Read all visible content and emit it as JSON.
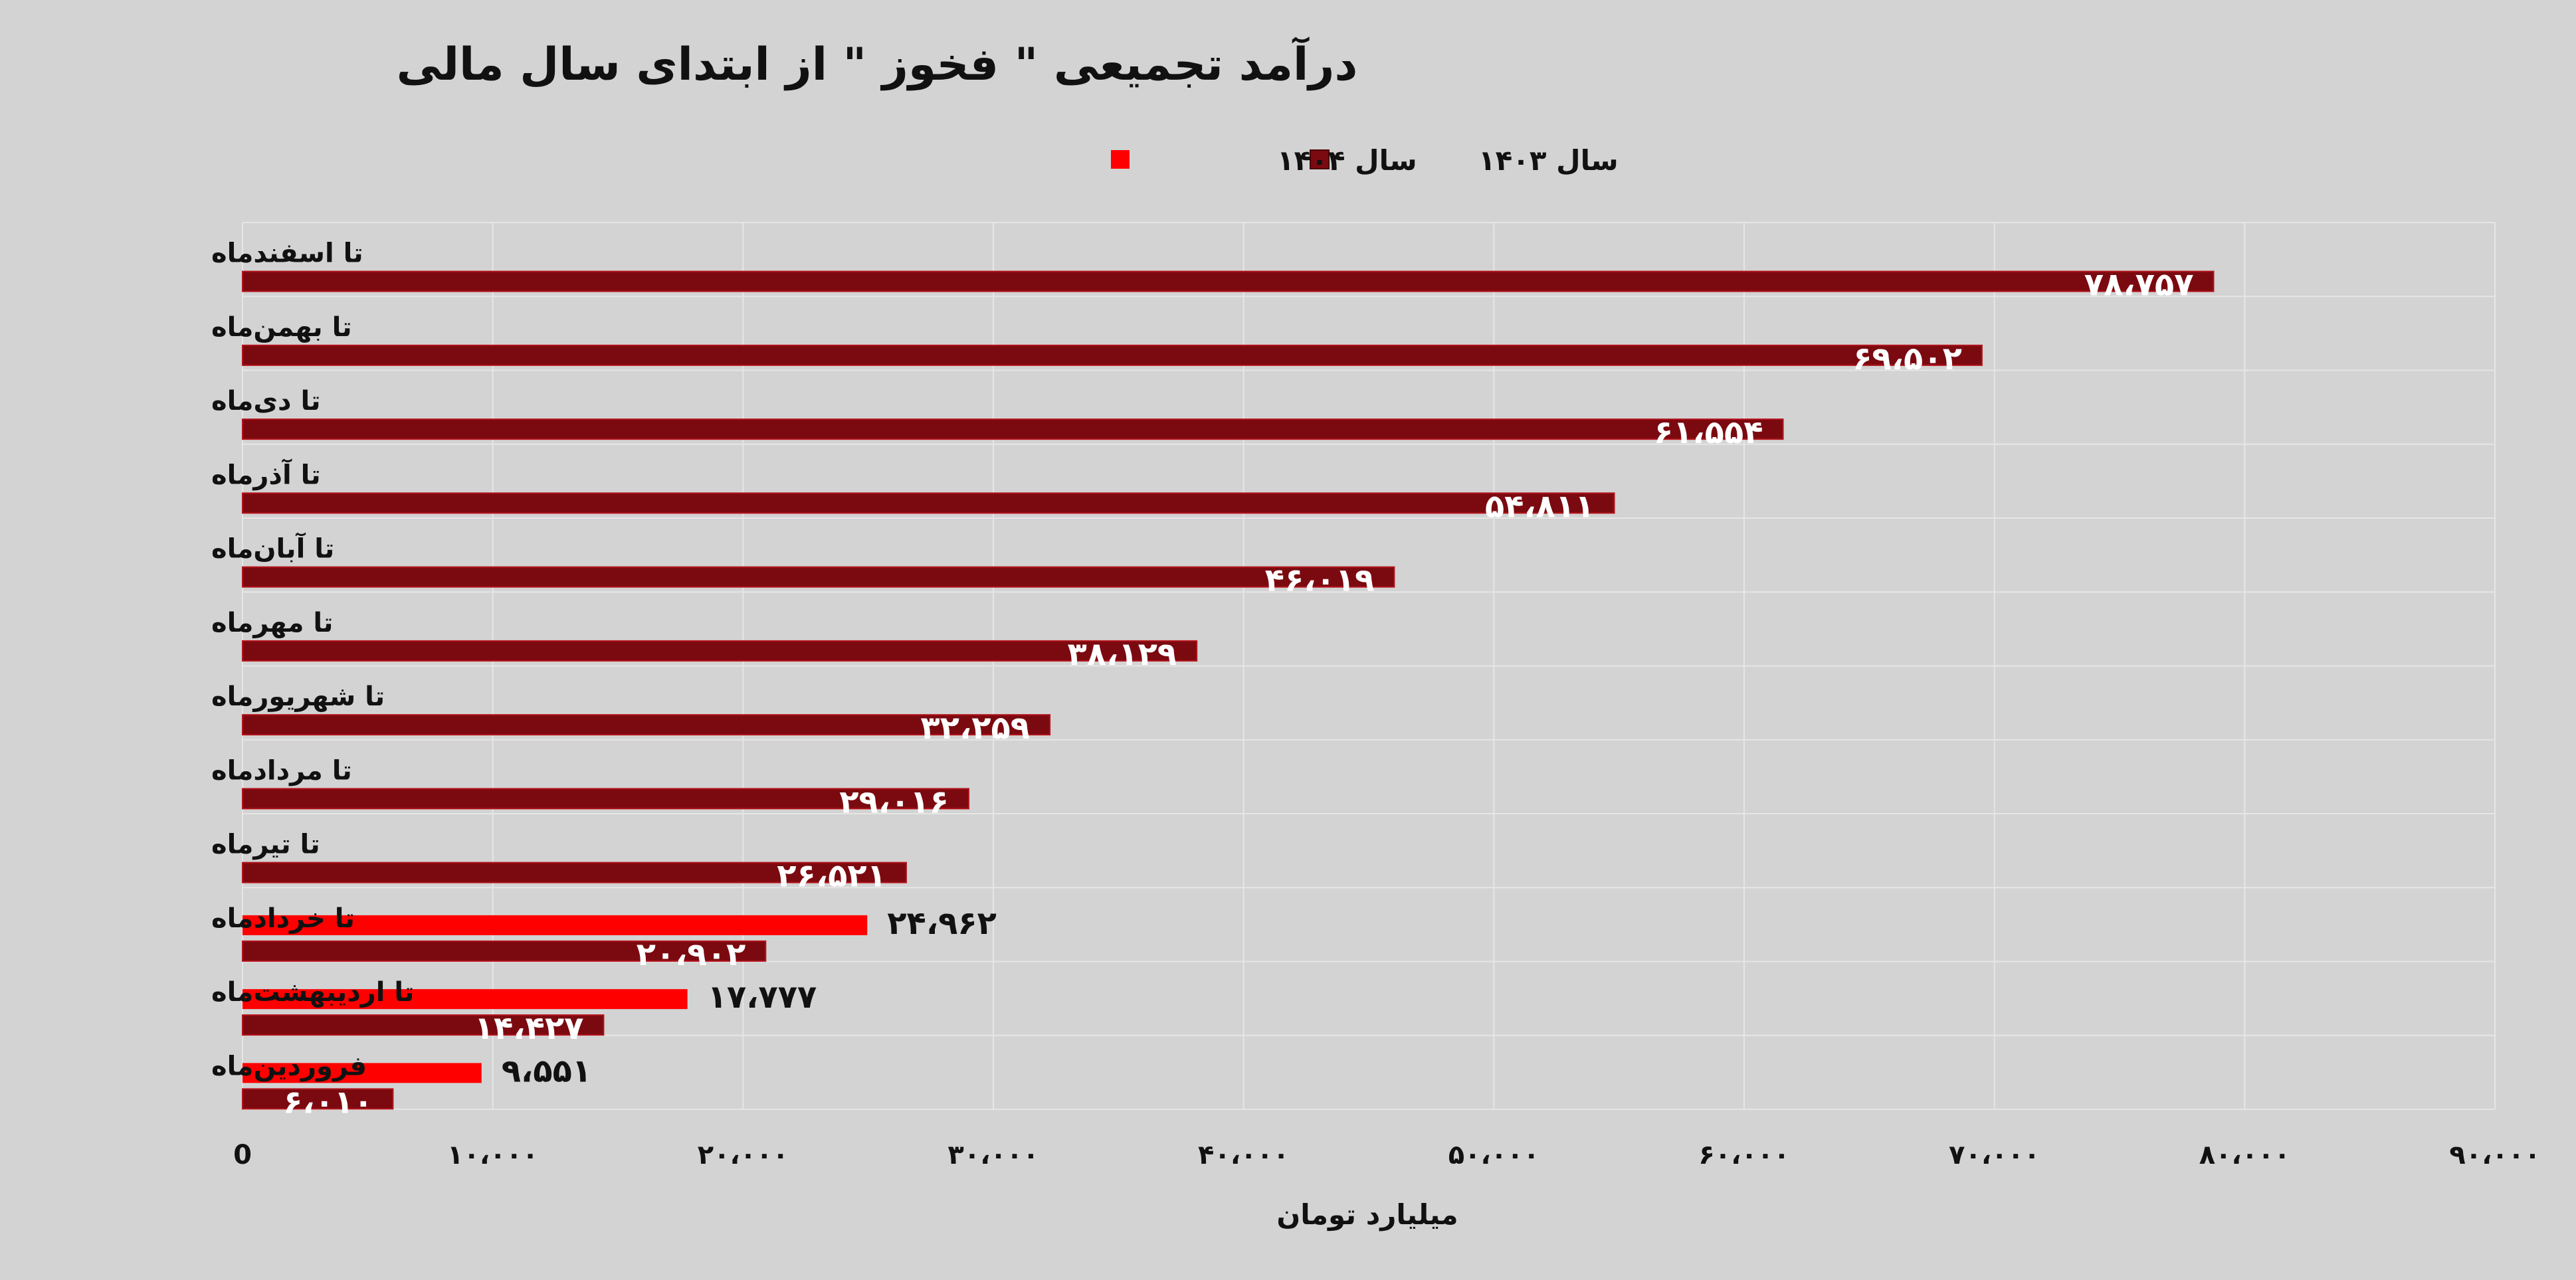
{
  "chart_data": {
    "type": "bar",
    "orientation": "horizontal",
    "title": "درآمد تجمیعی \" فخوز \" از ابتدای سال مالی",
    "xlabel": "میلیارد تومان",
    "ylabel": "",
    "xlim": [
      0,
      90000
    ],
    "x_ticks": [
      0,
      10000,
      20000,
      30000,
      40000,
      50000,
      60000,
      70000,
      80000,
      90000
    ],
    "x_tick_labels": [
      "0",
      "۱۰،۰۰۰",
      "۲۰،۰۰۰",
      "۳۰،۰۰۰",
      "۴۰،۰۰۰",
      "۵۰،۰۰۰",
      "۶۰،۰۰۰",
      "۷۰،۰۰۰",
      "۸۰،۰۰۰",
      "۹۰،۰۰۰"
    ],
    "grid": true,
    "legend_position": "top",
    "categories": [
      "تا اسفندماه",
      "تا بهمن‌ماه",
      "تا دی‌ماه",
      "تا آذرماه",
      "تا آبان‌ماه",
      "تا مهرماه",
      "تا شهریورماه",
      "تا مردادماه",
      "تا تیرماه",
      "تا خردادماه",
      "تا اردیبهشت‌ماه",
      "فروردین‌ماه"
    ],
    "series": [
      {
        "name": "سال ۱۴۰۳",
        "color": "#7b0a10",
        "values": [
          78757,
          69502,
          61554,
          54811,
          46019,
          38129,
          32259,
          29016,
          26521,
          20902,
          14427,
          6010
        ],
        "labels": [
          "۷۸،۷۵۷",
          "۶۹،۵۰۲",
          "۶۱،۵۵۴",
          "۵۴،۸۱۱",
          "۴۶،۰۱۹",
          "۳۸،۱۲۹",
          "۳۲،۲۵۹",
          "۲۹،۰۱۶",
          "۲۶،۵۲۱",
          "۲۰،۹۰۲",
          "۱۴،۴۲۷",
          "۶،۰۱۰"
        ]
      },
      {
        "name": "سال ۱۴۰۴",
        "color": "#ff0000",
        "values": [
          null,
          null,
          null,
          null,
          null,
          null,
          null,
          null,
          null,
          24962,
          17777,
          9551
        ],
        "labels": [
          "",
          "",
          "",
          "",
          "",
          "",
          "",
          "",
          "",
          "۲۴،۹۶۲",
          "۱۷،۷۷۷",
          "۹،۵۵۱"
        ]
      }
    ]
  }
}
